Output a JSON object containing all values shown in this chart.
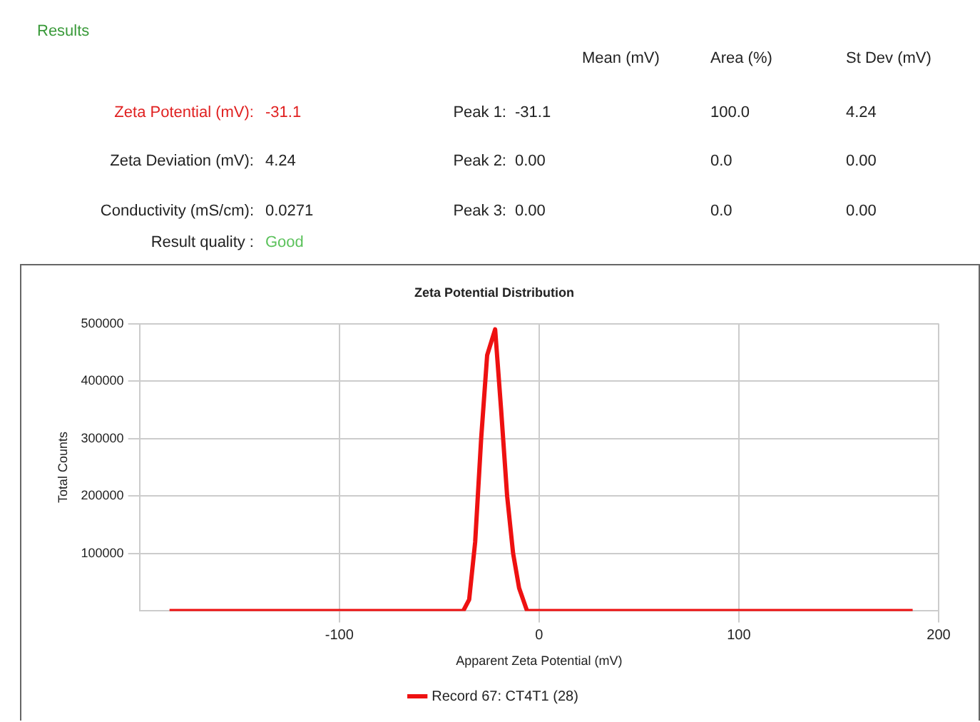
{
  "chart_data": [
    {
      "type": "other",
      "title": "Results",
      "annotations": [
        "Mean (mV)",
        "Area (%)",
        "St Dev (mV)",
        "Zeta Potential (mV):",
        "-31.1",
        "Peak 1:",
        "-31.1",
        "100.0",
        "4.24",
        "Zeta Deviation (mV):",
        "4.24",
        "Peak 2:",
        "0.00",
        "0.0",
        "0.00",
        "Conductivity (mS/cm):",
        "0.0271",
        "Peak 3:",
        "0.00",
        "0.0",
        "0.00",
        "Result quality :",
        "Good"
      ]
    },
    {
      "type": "line",
      "title": "Zeta Potential Distribution",
      "xlabel": "Apparent Zeta Potential (mV)",
      "ylabel": "Total Counts",
      "series": [
        {
          "name": "Record 67: CT4T1 (28)",
          "color": "#ee1111",
          "x": [
            -185,
            -38,
            -35,
            -32,
            -29,
            -26,
            -22,
            -19,
            -16,
            -13,
            -10,
            -6,
            187
          ],
          "values": [
            0,
            0,
            20000,
            120000,
            300000,
            445000,
            490000,
            350000,
            200000,
            100000,
            40000,
            0,
            0
          ]
        }
      ],
      "xlim": [
        -200,
        200
      ],
      "xticks": [
        -100,
        0,
        100,
        200
      ],
      "ylim": [
        0,
        500000
      ],
      "yticks": [
        100000,
        200000,
        300000,
        400000,
        500000
      ],
      "grid": true,
      "legend": "bottom",
      "marker": "none",
      "line_style": "solid"
    }
  ]
}
